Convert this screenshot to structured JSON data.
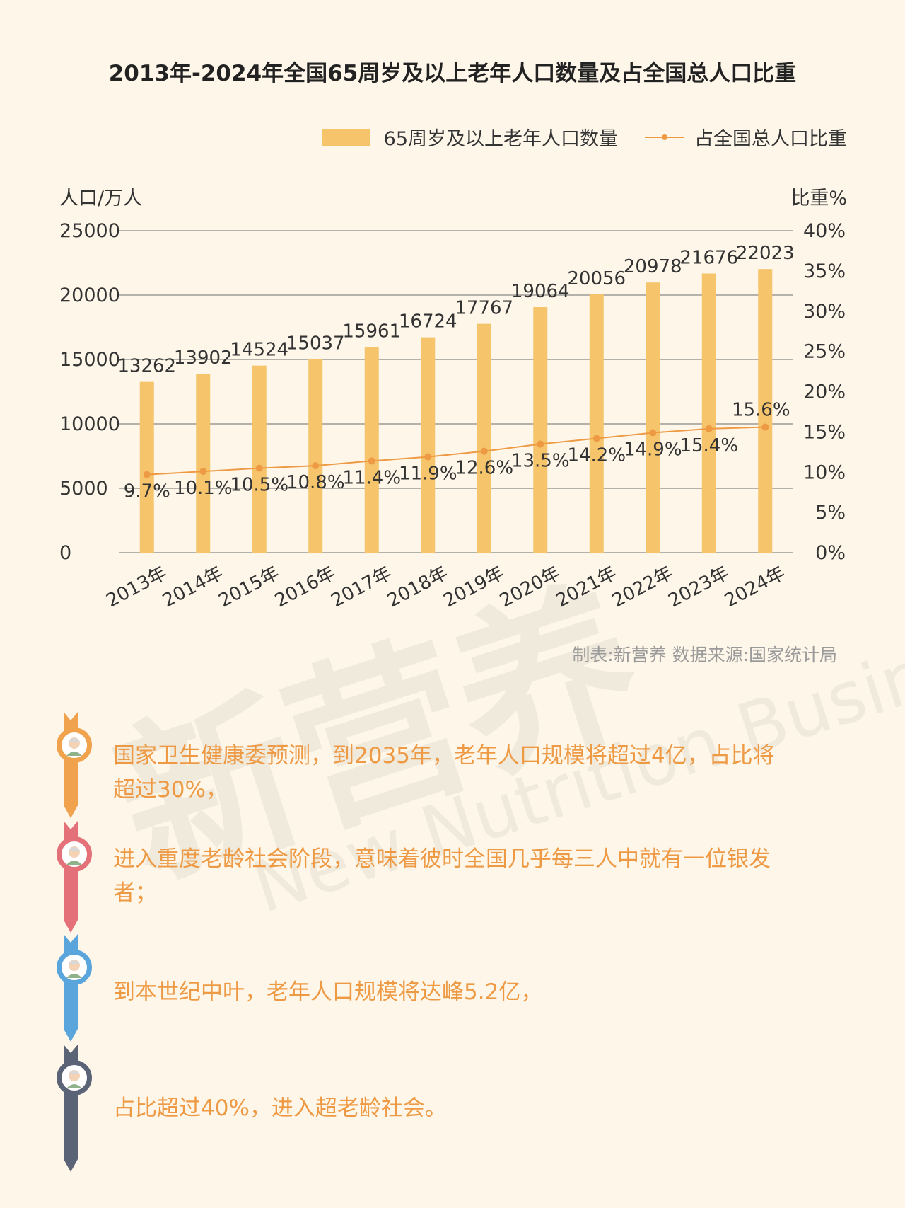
{
  "title": "2013年-2024年全国65周岁及以上老年人口数量及占全国总人口比重",
  "legend": {
    "bar_label": "65周岁及以上老年人口数量",
    "line_label": "占全国总人口比重"
  },
  "credit": "制表:新营养  数据来源:国家统计局",
  "chart_data": {
    "type": "bar",
    "categories": [
      "2013年",
      "2014年",
      "2015年",
      "2016年",
      "2017年",
      "2018年",
      "2019年",
      "2020年",
      "2021年",
      "2022年",
      "2023年",
      "2024年"
    ],
    "ylabel": "人口/万人",
    "y2label": "比重%",
    "ylim": [
      0,
      25000
    ],
    "y2lim": [
      0,
      40
    ],
    "yticks": [
      "0",
      "5000",
      "10000",
      "15000",
      "20000",
      "25000"
    ],
    "y2ticks": [
      "0%",
      "5%",
      "10%",
      "15%",
      "20%",
      "25%",
      "30%",
      "35%",
      "40%"
    ],
    "grid": true,
    "legend_position": "top-right",
    "series": [
      {
        "name": "65周岁及以上老年人口数量",
        "type": "bar",
        "axis": "left",
        "color": "#f6c46a",
        "values": [
          13262,
          13902,
          14524,
          15037,
          15961,
          16724,
          17767,
          19064,
          20056,
          20978,
          21676,
          22023
        ],
        "labels": [
          "13262",
          "13902",
          "14524",
          "15037",
          "15961",
          "16724",
          "17767",
          "19064",
          "20056",
          "20978",
          "21676",
          "22023"
        ]
      },
      {
        "name": "占全国总人口比重",
        "type": "line",
        "axis": "right",
        "color": "#ee9a45",
        "values": [
          9.7,
          10.1,
          10.5,
          10.8,
          11.4,
          11.9,
          12.6,
          13.5,
          14.2,
          14.9,
          15.4,
          15.6
        ],
        "labels": [
          "9.7%",
          "10.1%",
          "10.5%",
          "10.8%",
          "11.4%",
          "11.9%",
          "12.6%",
          "13.5%",
          "14.2%",
          "14.9%",
          "15.4%",
          "15.6%"
        ]
      }
    ]
  },
  "timeline": [
    {
      "text": "国家卫生健康委预测，到2035年，老年人口规模将超过4亿，占比将超过30%，",
      "color": "#f0a24d"
    },
    {
      "text": "进入重度老龄社会阶段，意味着彼时全国几乎每三人中就有一位银发者；",
      "color": "#e4717a"
    },
    {
      "text": "到本世纪中叶，老年人口规模将达峰5.2亿，",
      "color": "#5aa5dc"
    },
    {
      "text": "占比超过40%，进入超老龄社会。",
      "color": "#5b6377"
    }
  ],
  "watermark": {
    "text_cn": "新营养",
    "text_en": "New Nutrition Business"
  }
}
